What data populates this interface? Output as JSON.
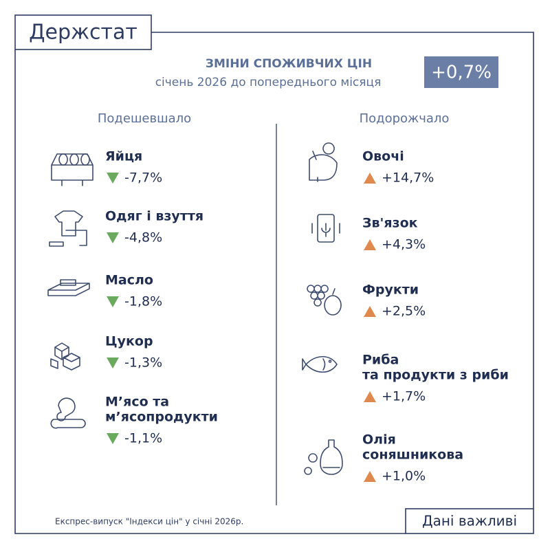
{
  "header": {
    "logo": "Держстат",
    "title": "ЗМІНИ СПОЖИВЧИХ ЦІН",
    "subtitle": "січень 2026 до попереднього місяця",
    "total": "+0,7%"
  },
  "left": {
    "heading": "Подешевшало",
    "items": [
      {
        "label_lines": [
          "Яйця"
        ],
        "change": "-7,7%"
      },
      {
        "label_lines": [
          "Одяг і взуття"
        ],
        "change": "-4,8%"
      },
      {
        "label_lines": [
          "Масло"
        ],
        "change": "-1,8%"
      },
      {
        "label_lines": [
          "Цукор"
        ],
        "change": "-1,3%"
      },
      {
        "label_lines": [
          "М’ясо та",
          "м’ясопродукти"
        ],
        "change": "-1,1%"
      }
    ]
  },
  "right": {
    "heading": "Подорожчало",
    "items": [
      {
        "label_lines": [
          "Овочі"
        ],
        "change": "+14,7%"
      },
      {
        "label_lines": [
          "Зв'язок"
        ],
        "change": "+4,3%"
      },
      {
        "label_lines": [
          "Фрукти"
        ],
        "change": "+2,5%"
      },
      {
        "label_lines": [
          "Риба",
          "та продукти з риби"
        ],
        "change": "+1,7%"
      },
      {
        "label_lines": [
          "Олія",
          "соняшникова"
        ],
        "change": "+1,0%"
      }
    ]
  },
  "footer": {
    "note": "Експрес-випуск \"Індекси цін\" у січні 2026р.",
    "brand": "Дані важливі"
  }
}
